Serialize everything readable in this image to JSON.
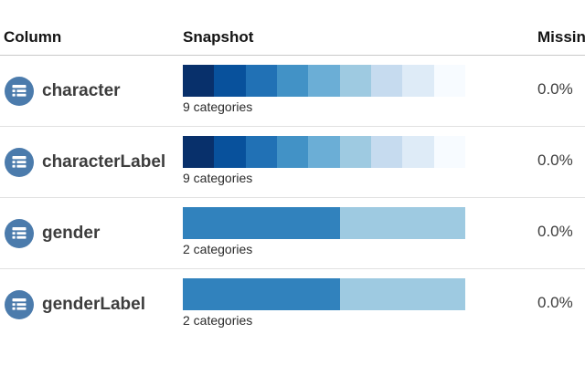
{
  "table": {
    "headers": [
      "Column",
      "Snapshot",
      "Missing"
    ],
    "rows": [
      {
        "name": "character",
        "icon": "list-icon",
        "missing": "0.0%",
        "snapshot": {
          "caption": "9 categories",
          "segments": [
            {
              "fraction": 0.1111,
              "color": "#08306b"
            },
            {
              "fraction": 0.1111,
              "color": "#08519c"
            },
            {
              "fraction": 0.1111,
              "color": "#2171b5"
            },
            {
              "fraction": 0.1111,
              "color": "#4292c6"
            },
            {
              "fraction": 0.1111,
              "color": "#6baed6"
            },
            {
              "fraction": 0.1111,
              "color": "#9ecae1"
            },
            {
              "fraction": 0.1111,
              "color": "#c6dbef"
            },
            {
              "fraction": 0.1111,
              "color": "#deebf7"
            },
            {
              "fraction": 0.1112,
              "color": "#f7fbff"
            }
          ]
        }
      },
      {
        "name": "characterLabel",
        "icon": "list-icon",
        "missing": "0.0%",
        "snapshot": {
          "caption": "9 categories",
          "segments": [
            {
              "fraction": 0.1111,
              "color": "#08306b"
            },
            {
              "fraction": 0.1111,
              "color": "#08519c"
            },
            {
              "fraction": 0.1111,
              "color": "#2171b5"
            },
            {
              "fraction": 0.1111,
              "color": "#4292c6"
            },
            {
              "fraction": 0.1111,
              "color": "#6baed6"
            },
            {
              "fraction": 0.1111,
              "color": "#9ecae1"
            },
            {
              "fraction": 0.1111,
              "color": "#c6dbef"
            },
            {
              "fraction": 0.1111,
              "color": "#deebf7"
            },
            {
              "fraction": 0.1112,
              "color": "#f7fbff"
            }
          ]
        }
      },
      {
        "name": "gender",
        "icon": "list-icon",
        "missing": "0.0%",
        "snapshot": {
          "caption": "2 categories",
          "segments": [
            {
              "fraction": 0.556,
              "color": "#3182bd"
            },
            {
              "fraction": 0.444,
              "color": "#9ecae1"
            }
          ]
        }
      },
      {
        "name": "genderLabel",
        "icon": "list-icon",
        "missing": "0.0%",
        "snapshot": {
          "caption": "2 categories",
          "segments": [
            {
              "fraction": 0.556,
              "color": "#3182bd"
            },
            {
              "fraction": 0.444,
              "color": "#9ecae1"
            }
          ]
        }
      }
    ]
  },
  "colors": {
    "icon_circle": "#4b7bac",
    "header_divider": "#c9c9c9",
    "row_divider": "#e1e1e1"
  }
}
